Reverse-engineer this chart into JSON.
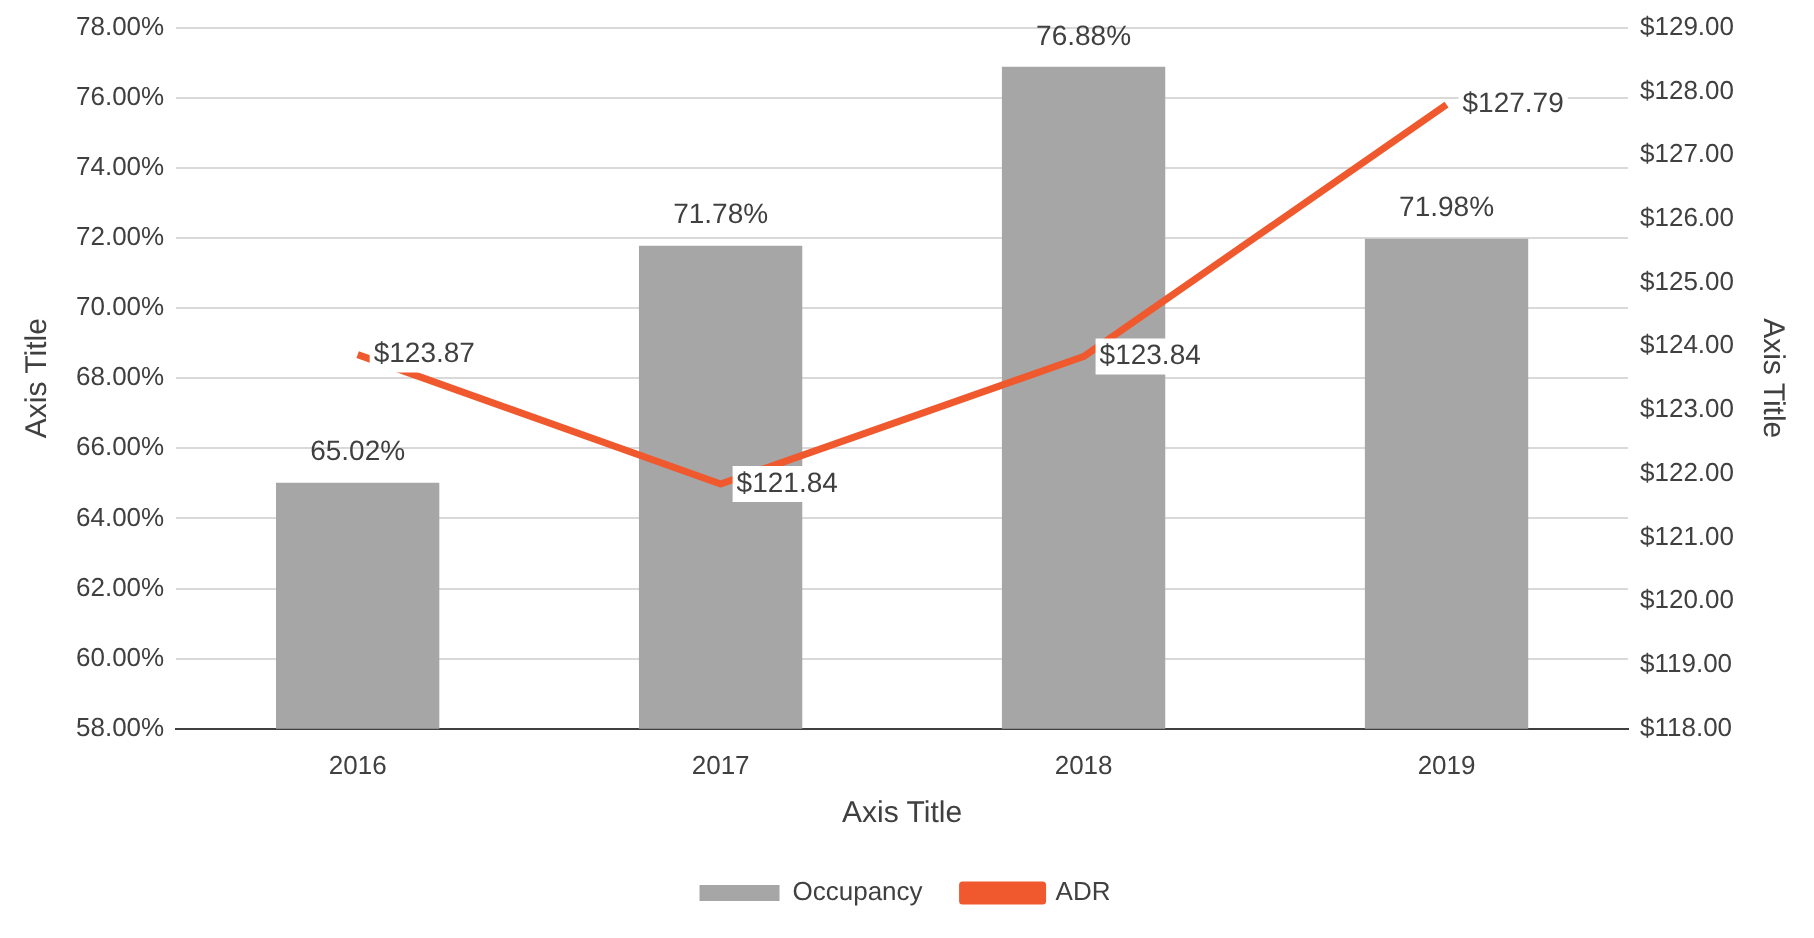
{
  "chart_data": {
    "type": "bar",
    "categories": [
      "2016",
      "2017",
      "2018",
      "2019"
    ],
    "xlabel": "Axis Title",
    "ylabel": "Axis Title",
    "y2label": "Axis Title",
    "series": [
      {
        "name": "Occupancy",
        "color": "#a6a6a6",
        "values": [
          65.02,
          71.78,
          76.88,
          71.98
        ],
        "value_labels": [
          "65.02%",
          "71.78%",
          "76.88%",
          "71.98%"
        ]
      },
      {
        "name": "ADR",
        "type": "line",
        "axis": "y2",
        "color": "#f0582e",
        "values": [
          123.87,
          121.84,
          123.84,
          127.79
        ],
        "value_labels": [
          "$123.87",
          "$121.84",
          "$123.84",
          "$127.79"
        ]
      }
    ],
    "ylim": [
      58,
      78
    ],
    "yticks": [
      {
        "value": 58,
        "label": "58.00%"
      },
      {
        "value": 60,
        "label": "60.00%"
      },
      {
        "value": 62,
        "label": "62.00%"
      },
      {
        "value": 64,
        "label": "64.00%"
      },
      {
        "value": 66,
        "label": "66.00%"
      },
      {
        "value": 68,
        "label": "68.00%"
      },
      {
        "value": 70,
        "label": "70.00%"
      },
      {
        "value": 72,
        "label": "72.00%"
      },
      {
        "value": 74,
        "label": "74.00%"
      },
      {
        "value": 76,
        "label": "76.00%"
      },
      {
        "value": 78,
        "label": "78.00%"
      }
    ],
    "y2lim": [
      118,
      129
    ],
    "y2ticks": [
      {
        "value": 118,
        "label": "$118.00"
      },
      {
        "value": 119,
        "label": "$119.00"
      },
      {
        "value": 120,
        "label": "$120.00"
      },
      {
        "value": 121,
        "label": "$121.00"
      },
      {
        "value": 122,
        "label": "$122.00"
      },
      {
        "value": 123,
        "label": "$123.00"
      },
      {
        "value": 124,
        "label": "$124.00"
      },
      {
        "value": 125,
        "label": "$125.00"
      },
      {
        "value": 126,
        "label": "$126.00"
      },
      {
        "value": 127,
        "label": "$127.00"
      },
      {
        "value": 128,
        "label": "$128.00"
      },
      {
        "value": 129,
        "label": "$129.00"
      }
    ],
    "grid": "y",
    "legend": "bottom",
    "marker": "none",
    "line_style": "solid"
  }
}
